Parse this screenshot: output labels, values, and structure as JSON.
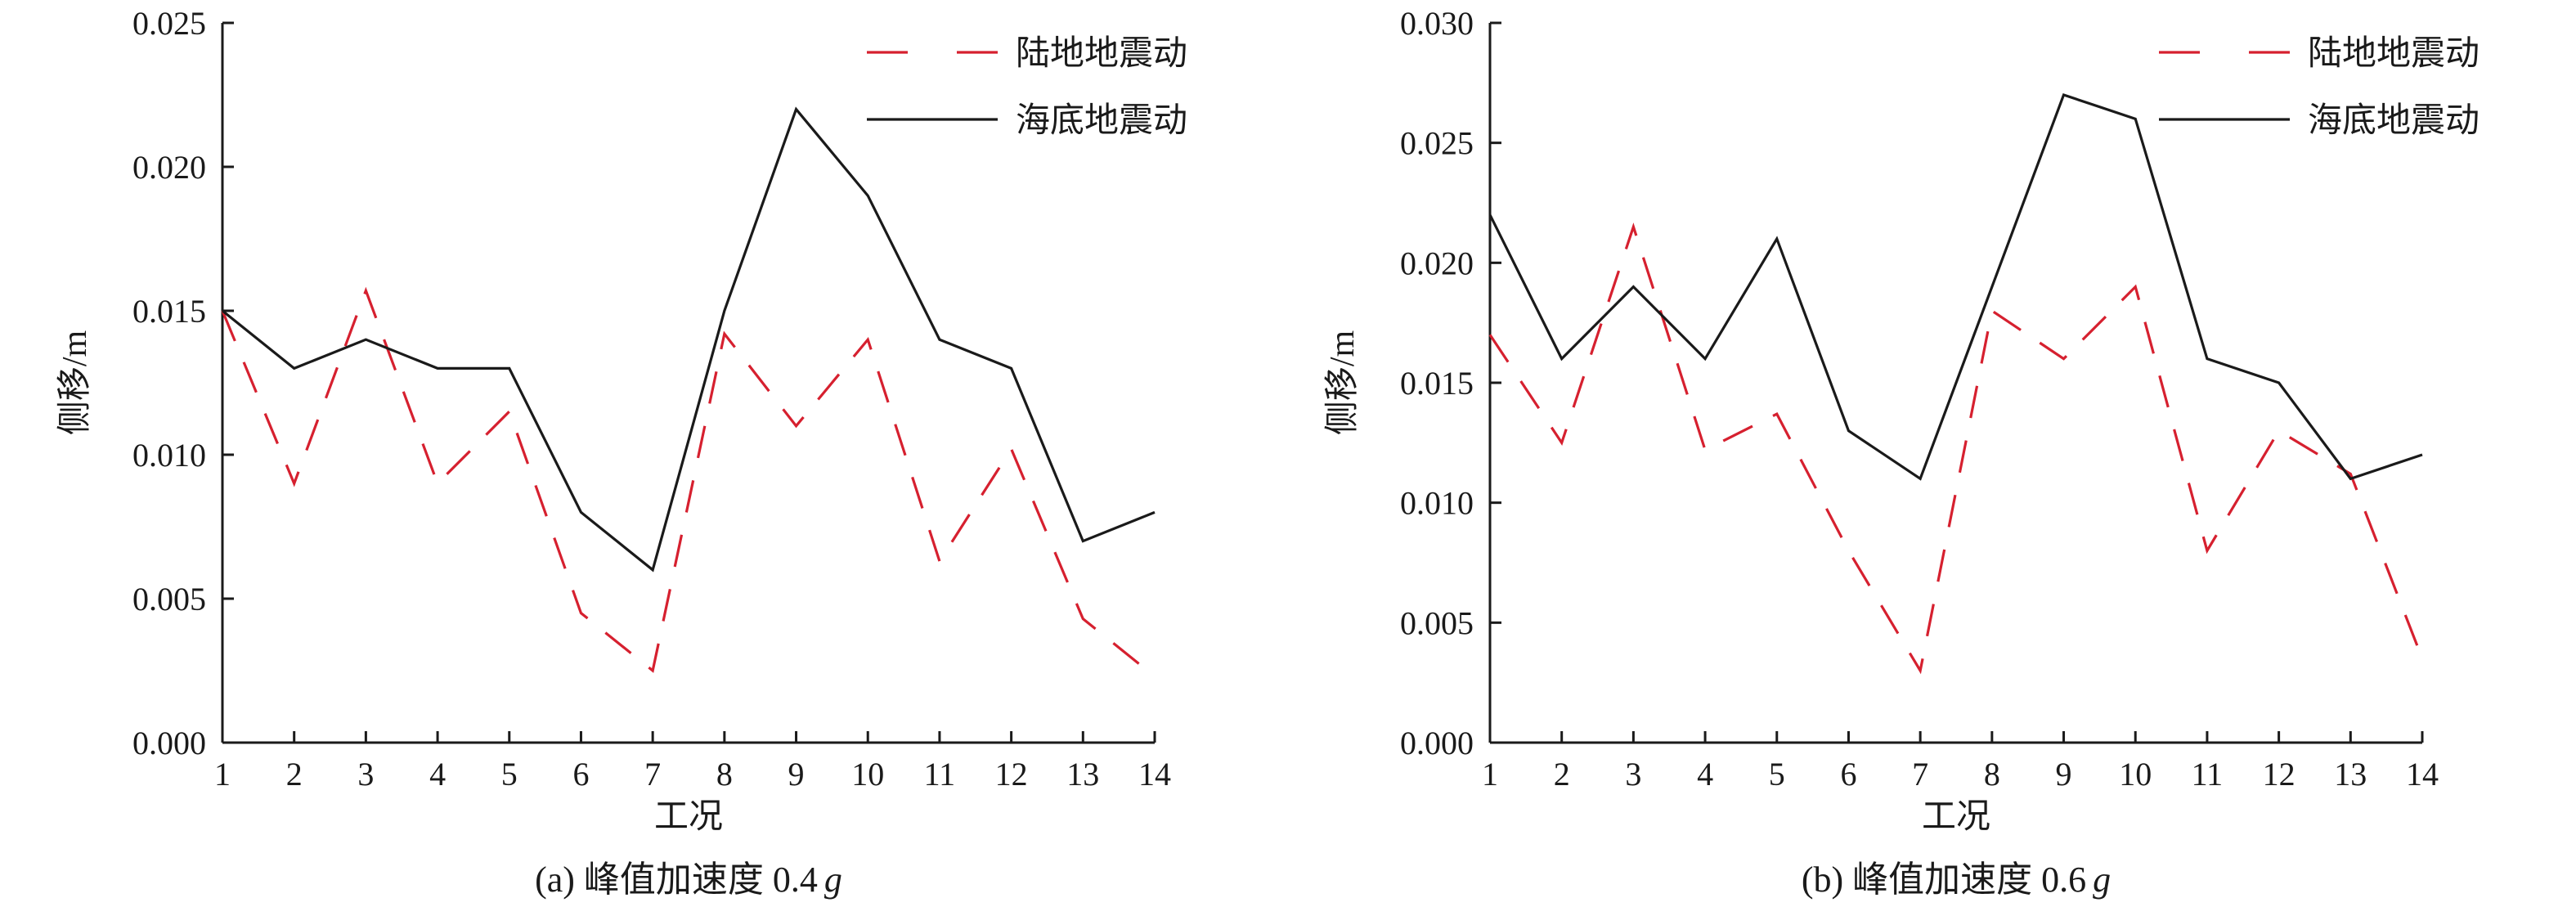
{
  "chart_data": [
    {
      "type": "line",
      "title": "",
      "caption": "(a) 峰值加速度 0.4",
      "caption_suffix": "g",
      "xlabel": "工况",
      "ylabel": "侧移/m",
      "x": [
        1,
        2,
        3,
        4,
        5,
        6,
        7,
        8,
        9,
        10,
        11,
        12,
        13,
        14
      ],
      "x_ticks": [
        "1",
        "2",
        "3",
        "4",
        "5",
        "6",
        "7",
        "8",
        "9",
        "10",
        "11",
        "12",
        "13",
        "14"
      ],
      "xlim": [
        1,
        14
      ],
      "ylim": [
        0,
        0.025
      ],
      "y_ticks": [
        "0.000",
        "0.005",
        "0.010",
        "0.015",
        "0.020",
        "0.025"
      ],
      "grid": false,
      "legend_position": "top-right",
      "series": [
        {
          "name": "陆地地震动",
          "color": "#d6202f",
          "style": "dashed",
          "values": [
            0.015,
            0.009,
            0.0157,
            0.009,
            0.0115,
            0.0045,
            0.0025,
            0.0142,
            0.011,
            0.014,
            0.0063,
            0.0102,
            0.0043,
            0.0023
          ]
        },
        {
          "name": "海底地震动",
          "color": "#1a1a1a",
          "style": "solid",
          "values": [
            0.015,
            0.013,
            0.014,
            0.013,
            0.013,
            0.008,
            0.006,
            0.015,
            0.022,
            0.019,
            0.014,
            0.013,
            0.007,
            0.008
          ]
        }
      ]
    },
    {
      "type": "line",
      "title": "",
      "caption": "(b) 峰值加速度 0.6",
      "caption_suffix": "g",
      "xlabel": "工况",
      "ylabel": "侧移/m",
      "x": [
        1,
        2,
        3,
        4,
        5,
        6,
        7,
        8,
        9,
        10,
        11,
        12,
        13,
        14
      ],
      "x_ticks": [
        "1",
        "2",
        "3",
        "4",
        "5",
        "6",
        "7",
        "8",
        "9",
        "10",
        "11",
        "12",
        "13",
        "14"
      ],
      "xlim": [
        1,
        14
      ],
      "ylim": [
        0,
        0.03
      ],
      "y_ticks": [
        "0.000",
        "0.005",
        "0.010",
        "0.015",
        "0.020",
        "0.025",
        "0.030"
      ],
      "grid": false,
      "legend_position": "top-right",
      "series": [
        {
          "name": "陆地地震动",
          "color": "#d6202f",
          "style": "dashed",
          "values": [
            0.017,
            0.0125,
            0.0215,
            0.0122,
            0.0137,
            0.008,
            0.003,
            0.018,
            0.016,
            0.019,
            0.008,
            0.013,
            0.0112,
            0.0035
          ]
        },
        {
          "name": "海底地震动",
          "color": "#1a1a1a",
          "style": "solid",
          "values": [
            0.022,
            0.016,
            0.019,
            0.016,
            0.021,
            0.013,
            0.011,
            0.019,
            0.027,
            0.026,
            0.016,
            0.015,
            0.011,
            0.012
          ]
        }
      ]
    }
  ]
}
